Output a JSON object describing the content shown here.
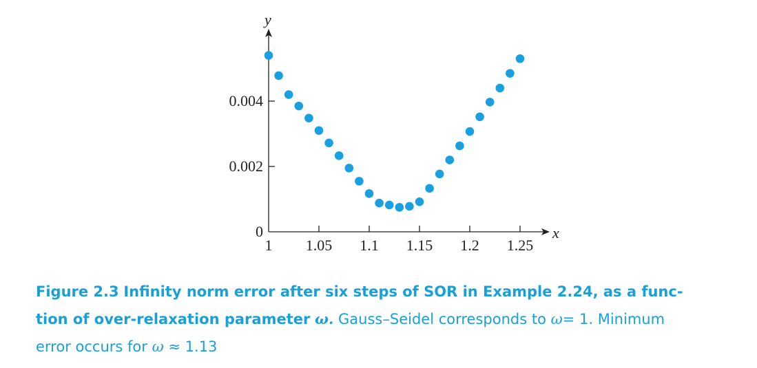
{
  "chart_data": {
    "type": "scatter",
    "xlabel": "x",
    "ylabel": "y",
    "xlim": [
      1,
      1.25
    ],
    "ylim": [
      0,
      0.0054
    ],
    "x_ticks": [
      1,
      1.05,
      1.1,
      1.15,
      1.2,
      1.25
    ],
    "x_tick_labels": [
      "1",
      "1.05",
      "1.1",
      "1.15",
      "1.2",
      "1.25"
    ],
    "y_ticks": [
      0,
      0.002,
      0.004
    ],
    "y_tick_labels": [
      "0",
      "0.002",
      "0.004"
    ],
    "marker_color": "#1aa0e0",
    "grid": false,
    "x": [
      1.0,
      1.01,
      1.02,
      1.03,
      1.04,
      1.05,
      1.06,
      1.07,
      1.08,
      1.09,
      1.1,
      1.11,
      1.12,
      1.13,
      1.14,
      1.15,
      1.16,
      1.17,
      1.18,
      1.19,
      1.2,
      1.21,
      1.22,
      1.23,
      1.24,
      1.25
    ],
    "y": [
      0.0054,
      0.00478,
      0.0042,
      0.00385,
      0.00348,
      0.0031,
      0.00272,
      0.00233,
      0.00195,
      0.00155,
      0.00117,
      0.00088,
      0.00082,
      0.00075,
      0.00078,
      0.00092,
      0.00133,
      0.00177,
      0.0022,
      0.00263,
      0.00307,
      0.00352,
      0.00397,
      0.0044,
      0.00485,
      0.0053
    ]
  },
  "caption": {
    "label": "Figure 2.3",
    "title_part1": "Infinity norm error after six steps of SOR in Example 2.24, as a func-",
    "title_part2": "tion of over-relaxation parameter",
    "omega_bold": "ω.",
    "text1": "Gauss–Seidel corresponds to",
    "omega_eq1": "ω",
    "eq1": "= 1. Minimum",
    "text2": "error occurs for",
    "omega_approx": "ω",
    "approx": "≈ 1.13"
  }
}
